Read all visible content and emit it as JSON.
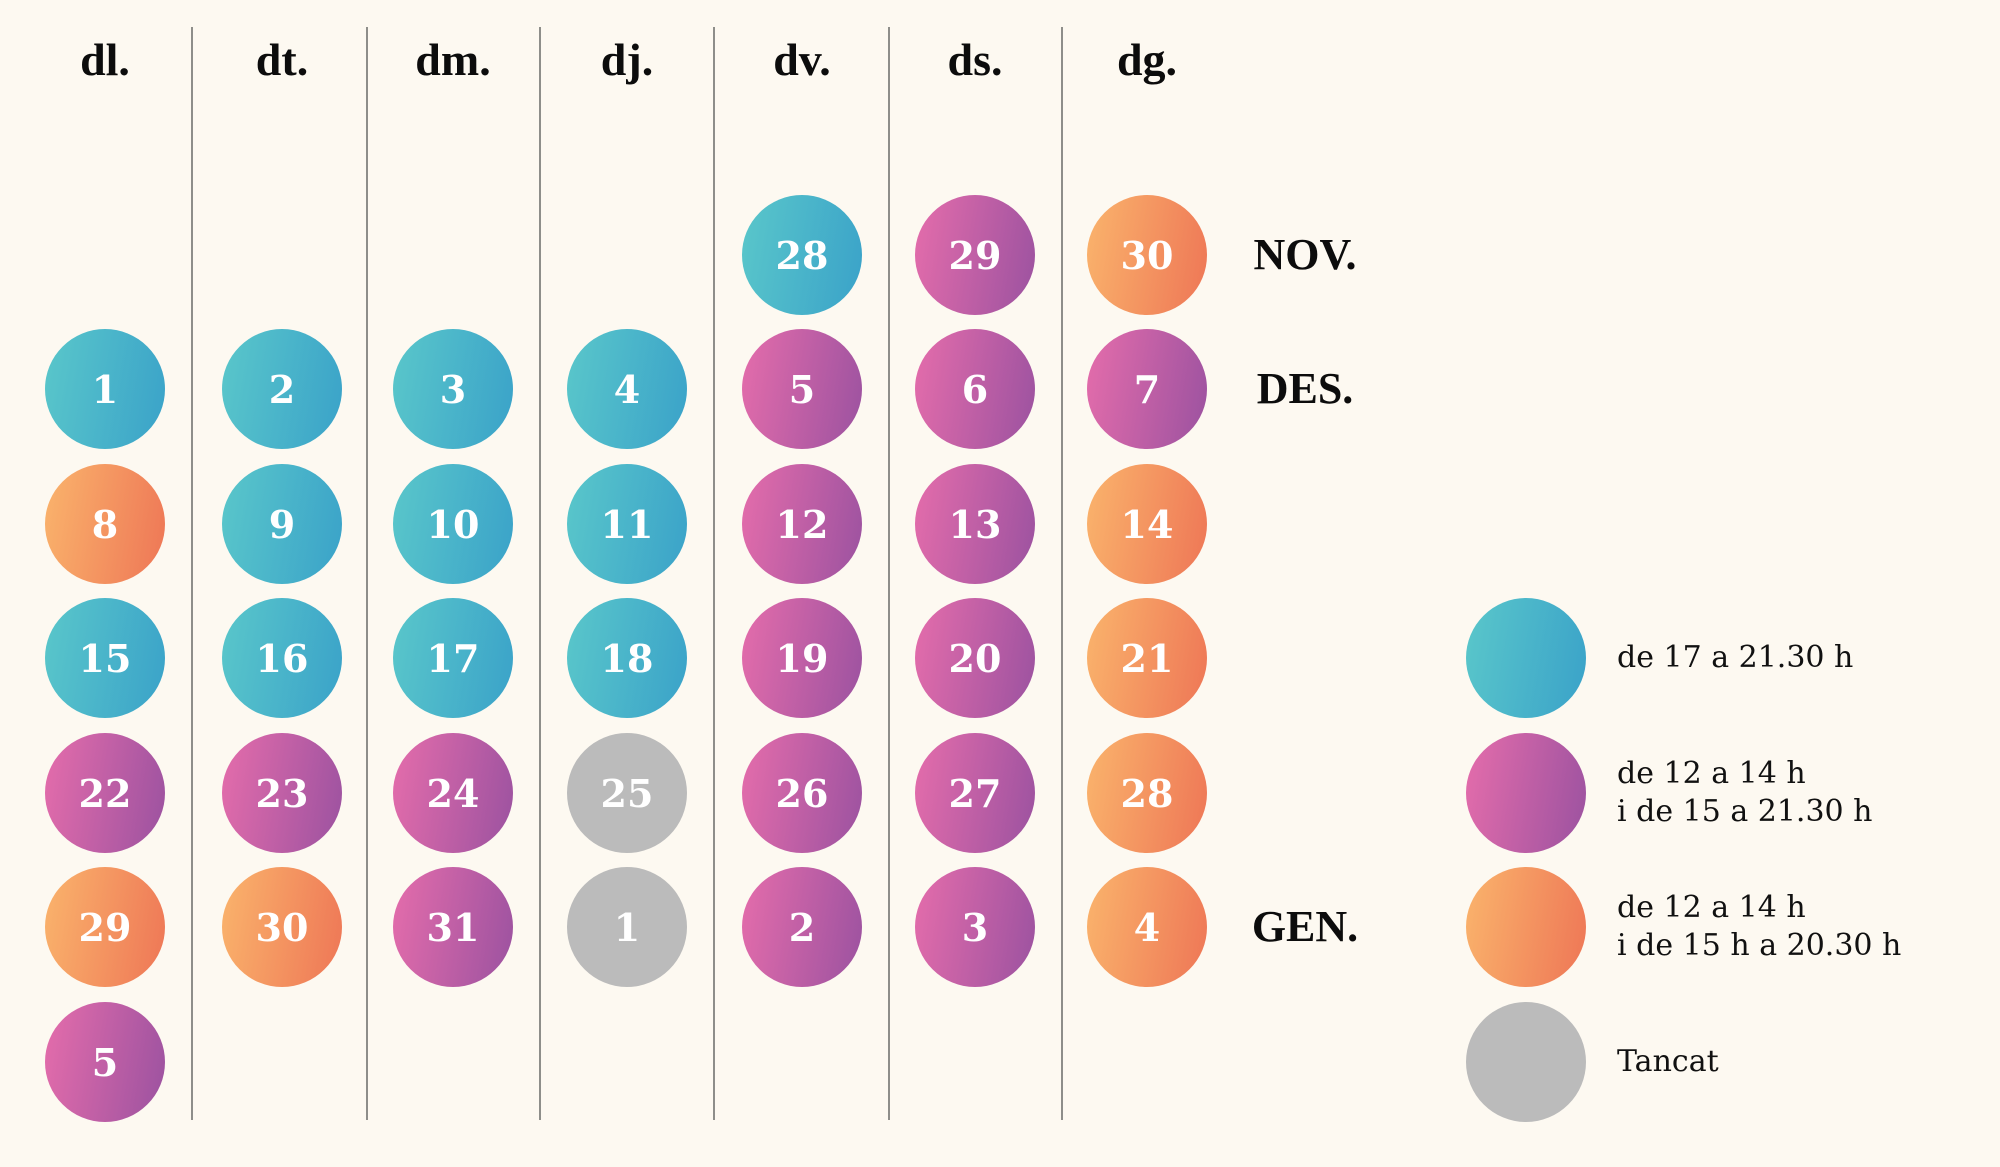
{
  "days_of_week": [
    "dl.",
    "dt.",
    "dm.",
    "dj.",
    "dv.",
    "ds.",
    "dg."
  ],
  "colors": {
    "background": "#fdf9f1",
    "teal": [
      "#5ac7ca",
      "#3aa2c9"
    ],
    "pink": [
      "#e56dab",
      "#9b52a0"
    ],
    "orange": [
      "#fab46c",
      "#ee7656"
    ],
    "grey": "#bbbbbb",
    "divider": "#8e8e8a"
  },
  "months": [
    {
      "label": "NOV.",
      "row": 0
    },
    {
      "label": "DES.",
      "row": 1
    },
    {
      "label": "GEN.",
      "row": 5
    }
  ],
  "calendar": {
    "rows": [
      [
        null,
        null,
        null,
        null,
        {
          "day": "28",
          "type": "teal"
        },
        {
          "day": "29",
          "type": "pink"
        },
        {
          "day": "30",
          "type": "orange"
        }
      ],
      [
        {
          "day": "1",
          "type": "teal"
        },
        {
          "day": "2",
          "type": "teal"
        },
        {
          "day": "3",
          "type": "teal"
        },
        {
          "day": "4",
          "type": "teal"
        },
        {
          "day": "5",
          "type": "pink"
        },
        {
          "day": "6",
          "type": "pink"
        },
        {
          "day": "7",
          "type": "pink"
        }
      ],
      [
        {
          "day": "8",
          "type": "orange"
        },
        {
          "day": "9",
          "type": "teal"
        },
        {
          "day": "10",
          "type": "teal"
        },
        {
          "day": "11",
          "type": "teal"
        },
        {
          "day": "12",
          "type": "pink"
        },
        {
          "day": "13",
          "type": "pink"
        },
        {
          "day": "14",
          "type": "orange"
        }
      ],
      [
        {
          "day": "15",
          "type": "teal"
        },
        {
          "day": "16",
          "type": "teal"
        },
        {
          "day": "17",
          "type": "teal"
        },
        {
          "day": "18",
          "type": "teal"
        },
        {
          "day": "19",
          "type": "pink"
        },
        {
          "day": "20",
          "type": "pink"
        },
        {
          "day": "21",
          "type": "orange"
        }
      ],
      [
        {
          "day": "22",
          "type": "pink"
        },
        {
          "day": "23",
          "type": "pink"
        },
        {
          "day": "24",
          "type": "pink"
        },
        {
          "day": "25",
          "type": "grey"
        },
        {
          "day": "26",
          "type": "pink"
        },
        {
          "day": "27",
          "type": "pink"
        },
        {
          "day": "28",
          "type": "orange"
        }
      ],
      [
        {
          "day": "29",
          "type": "orange"
        },
        {
          "day": "30",
          "type": "orange"
        },
        {
          "day": "31",
          "type": "pink"
        },
        {
          "day": "1",
          "type": "grey"
        },
        {
          "day": "2",
          "type": "pink"
        },
        {
          "day": "3",
          "type": "pink"
        },
        {
          "day": "4",
          "type": "orange"
        }
      ],
      [
        {
          "day": "5",
          "type": "pink"
        },
        null,
        null,
        null,
        null,
        null,
        null
      ]
    ]
  },
  "legend": [
    {
      "type": "teal",
      "lines": [
        "de 17 a 21.30 h"
      ]
    },
    {
      "type": "pink",
      "lines": [
        "de 12 a 14 h",
        "i de 15 a 21.30 h"
      ]
    },
    {
      "type": "orange",
      "lines": [
        "de 12 a 14 h",
        "i de 15 h a 20.30 h"
      ]
    },
    {
      "type": "grey",
      "lines": [
        "Tancat"
      ]
    }
  ]
}
